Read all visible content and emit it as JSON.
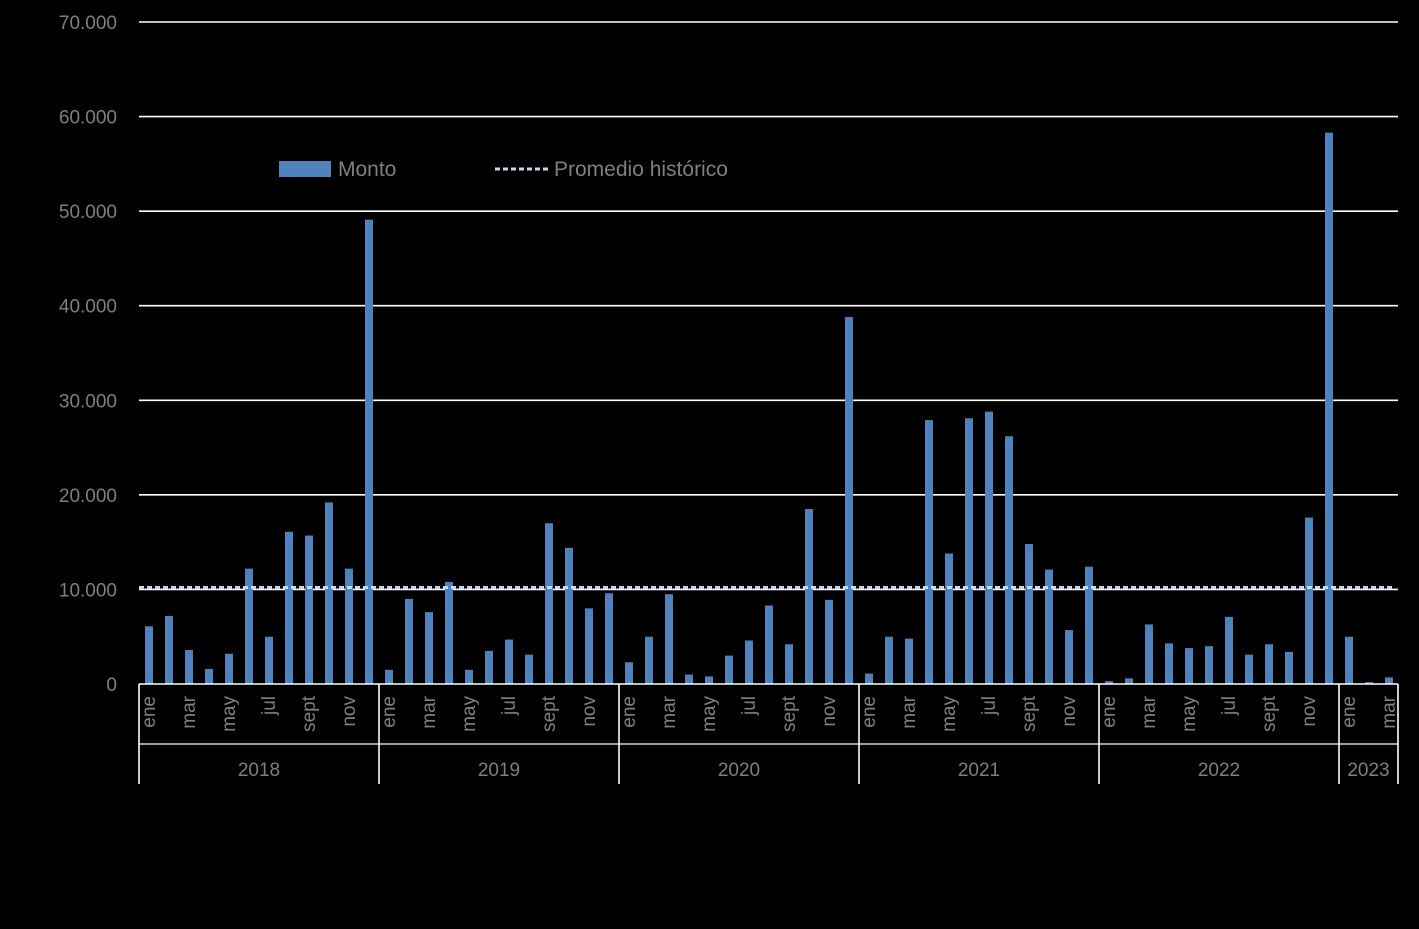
{
  "chart_data": {
    "type": "bar",
    "ylim": [
      0,
      70000
    ],
    "y_ticks": [
      "0",
      "10.000",
      "20.000",
      "30.000",
      "40.000",
      "50.000",
      "60.000",
      "70.000"
    ],
    "grid": true,
    "legend_position": "top-left",
    "colors": {
      "bar": "#4f81bd",
      "average_line": "#c6d9f1",
      "grid": "#ffffff",
      "axis_text": "#7f7f7f",
      "background": "#000000"
    },
    "series": [
      {
        "name": "Monto",
        "type": "bar",
        "values": [
          6100,
          7200,
          3600,
          1600,
          3200,
          12200,
          5000,
          16100,
          15700,
          19200,
          12200,
          49100,
          1500,
          9000,
          7600,
          10800,
          1500,
          3500,
          4700,
          3100,
          17000,
          14400,
          8000,
          9600,
          2300,
          5000,
          9500,
          1000,
          800,
          3000,
          4600,
          8300,
          4200,
          18500,
          8900,
          38800,
          1100,
          5000,
          4800,
          27900,
          13800,
          28100,
          28800,
          26200,
          14800,
          12100,
          5700,
          12400,
          300,
          600,
          6300,
          4300,
          3800,
          4000,
          7100,
          3100,
          4200,
          3400,
          17600,
          58300,
          5000,
          200,
          700
        ]
      },
      {
        "name": "Promedio histórico",
        "type": "line",
        "style": "dashed",
        "value": 10200
      }
    ],
    "month_labels": [
      "ene",
      "",
      "mar",
      "",
      "may",
      "",
      "jul",
      "",
      "sept",
      "",
      "nov",
      ""
    ],
    "years": [
      {
        "label": "2018",
        "months": 12
      },
      {
        "label": "2019",
        "months": 12
      },
      {
        "label": "2020",
        "months": 12
      },
      {
        "label": "2021",
        "months": 12
      },
      {
        "label": "2022",
        "months": 12
      },
      {
        "label": "2023",
        "months": 3
      }
    ]
  }
}
